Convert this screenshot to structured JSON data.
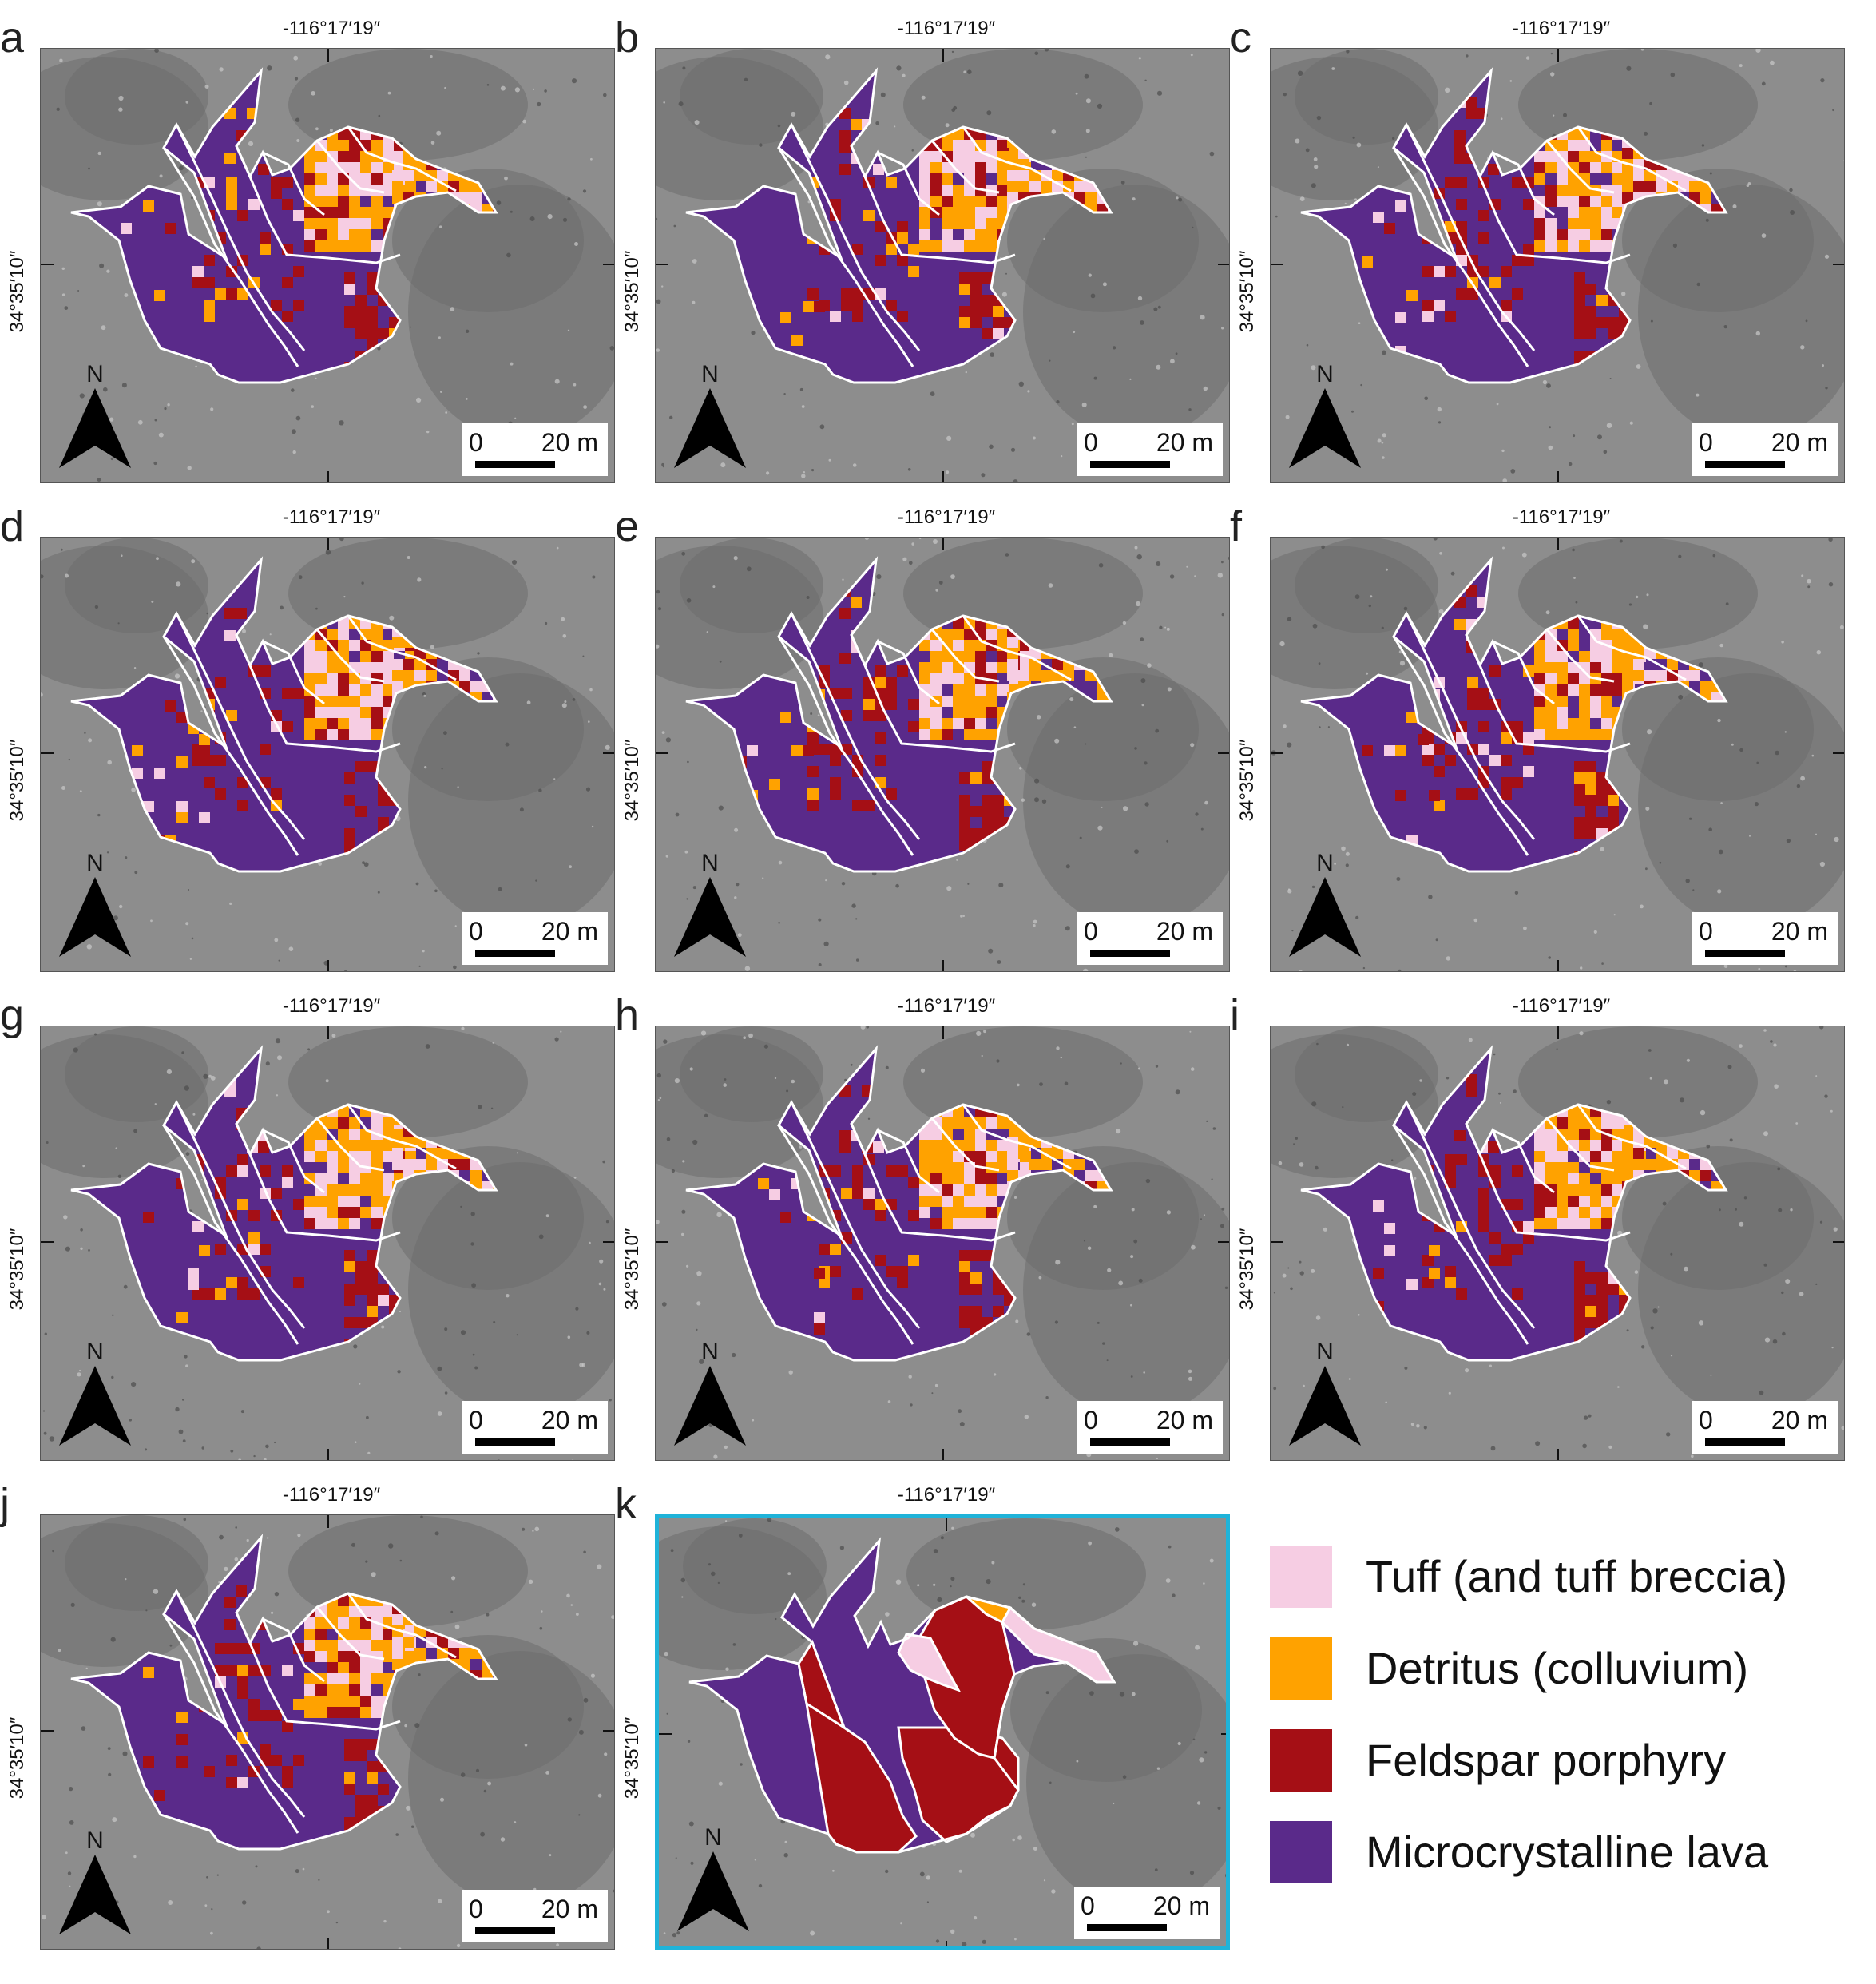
{
  "figure": {
    "panels": [
      {
        "letter": "a",
        "longitude": "-116°17′19″",
        "latitude": "34°35′10″",
        "scale_zero": "0",
        "scale_length": "20 m",
        "north": "N",
        "is_reference": false,
        "pattern_seed": 11
      },
      {
        "letter": "b",
        "longitude": "-116°17′19″",
        "latitude": "34°35′10″",
        "scale_zero": "0",
        "scale_length": "20 m",
        "north": "N",
        "is_reference": false,
        "pattern_seed": 23
      },
      {
        "letter": "c",
        "longitude": "-116°17′19″",
        "latitude": "34°35′10″",
        "scale_zero": "0",
        "scale_length": "20 m",
        "north": "N",
        "is_reference": false,
        "pattern_seed": 37
      },
      {
        "letter": "d",
        "longitude": "-116°17′19″",
        "latitude": "34°35′10″",
        "scale_zero": "0",
        "scale_length": "20 m",
        "north": "N",
        "is_reference": false,
        "pattern_seed": 41
      },
      {
        "letter": "e",
        "longitude": "-116°17′19″",
        "latitude": "34°35′10″",
        "scale_zero": "0",
        "scale_length": "20 m",
        "north": "N",
        "is_reference": false,
        "pattern_seed": 53
      },
      {
        "letter": "f",
        "longitude": "-116°17′19″",
        "latitude": "34°35′10″",
        "scale_zero": "0",
        "scale_length": "20 m",
        "north": "N",
        "is_reference": false,
        "pattern_seed": 67
      },
      {
        "letter": "g",
        "longitude": "-116°17′19″",
        "latitude": "34°35′10″",
        "scale_zero": "0",
        "scale_length": "20 m",
        "north": "N",
        "is_reference": false,
        "pattern_seed": 71
      },
      {
        "letter": "h",
        "longitude": "-116°17′19″",
        "latitude": "34°35′10″",
        "scale_zero": "0",
        "scale_length": "20 m",
        "north": "N",
        "is_reference": false,
        "pattern_seed": 83
      },
      {
        "letter": "i",
        "longitude": "-116°17′19″",
        "latitude": "34°35′10″",
        "scale_zero": "0",
        "scale_length": "20 m",
        "north": "N",
        "is_reference": false,
        "pattern_seed": 97
      },
      {
        "letter": "j",
        "longitude": "-116°17′19″",
        "latitude": "34°35′10″",
        "scale_zero": "0",
        "scale_length": "20 m",
        "north": "N",
        "is_reference": false,
        "pattern_seed": 101
      },
      {
        "letter": "k",
        "longitude": "-116°17′19″",
        "latitude": "34°35′10″",
        "scale_zero": "0",
        "scale_length": "20 m",
        "north": "N",
        "is_reference": true,
        "pattern_seed": 0
      }
    ],
    "legend": [
      {
        "label": "Tuff (and tuff  breccia)",
        "color": "#f6cde3"
      },
      {
        "label": "Detritus (colluvium)",
        "color": "#ffa200"
      },
      {
        "label": "Feldspar porphyry",
        "color": "#a50f15"
      },
      {
        "label": "Microcrystalline lava",
        "color": "#5a2a8a"
      }
    ],
    "colors": {
      "background_relief": "#8d8d8d",
      "boundary": "#ffffff",
      "reference_frame": "#1fb3d9"
    }
  }
}
